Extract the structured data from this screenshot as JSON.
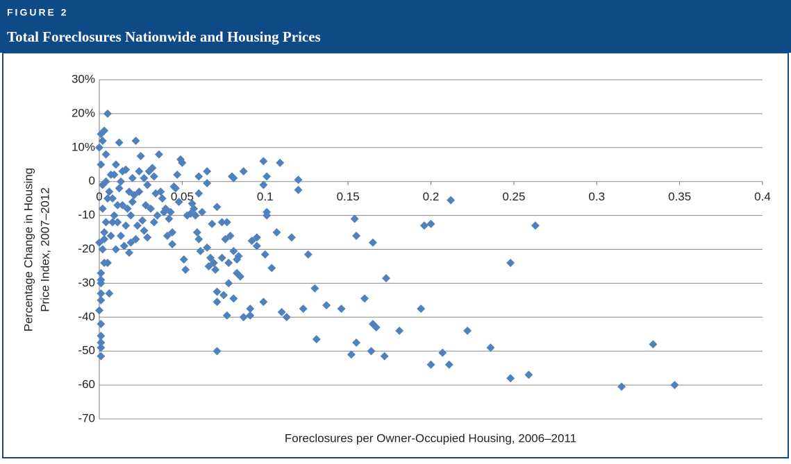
{
  "figure_label": "FIGURE 2",
  "chart_data": {
    "type": "scatter",
    "title": "Total Foreclosures Nationwide and Housing Prices",
    "x_label": "Foreclosures per Owner-Occupied Housing, 2006–2011",
    "y_label": [
      "Percentage Change in Housing",
      "Price Index, 2007–2012"
    ],
    "xlim": [
      0,
      0.4
    ],
    "xticks": [
      0,
      0.05,
      0.1,
      0.15,
      0.2,
      0.25,
      0.3,
      0.35,
      0.4
    ],
    "ylim": [
      -70,
      30
    ],
    "yticks": [
      {
        "value": 30,
        "label": "30%"
      },
      {
        "value": 20,
        "label": "20%"
      },
      {
        "value": 10,
        "label": "10%"
      },
      0,
      -10,
      -20,
      -30,
      -40,
      -50,
      -60,
      -70
    ],
    "grid": true,
    "series": [
      {
        "color": "#4f81bd",
        "x": [
          0.347,
          0.315,
          0.334,
          0.263,
          0.259,
          0.248,
          0.248,
          0.236,
          0.222,
          0.212,
          0.211,
          0.207,
          0.2,
          0.2,
          0.196,
          0.194,
          0.181,
          0.173,
          0.172,
          0.167,
          0.165,
          0.165,
          0.164,
          0.16,
          0.155,
          0.155,
          0.154,
          0.152,
          0.146,
          0.137,
          0.131,
          0.13,
          0.126,
          0.123,
          0.12,
          0.12,
          0.116,
          0.113,
          0.11,
          0.109,
          0.107,
          0.104,
          0.101,
          0.101,
          0.101,
          0.1,
          0.099,
          0.099,
          0.099,
          0.095,
          0.095,
          0.092,
          0.091,
          0.091,
          0.087,
          0.087,
          0.085,
          0.084,
          0.083,
          0.083,
          0.081,
          0.081,
          0.081,
          0.08,
          0.079,
          0.078,
          0.078,
          0.077,
          0.077,
          0.076,
          0.075,
          0.074,
          0.074,
          0.071,
          0.071,
          0.071,
          0.071,
          0.07,
          0.069,
          0.068,
          0.067,
          0.066,
          0.065,
          0.065,
          0.065,
          0.062,
          0.061,
          0.06,
          0.06,
          0.06,
          0.059,
          0.058,
          0.057,
          0.056,
          0.055,
          0.053,
          0.052,
          0.051,
          0.05,
          0.049,
          0.048,
          0.047,
          0.046,
          0.045,
          0.044,
          0.044,
          0.043,
          0.042,
          0.041,
          0.04,
          0.038,
          0.037,
          0.036,
          0.035,
          0.034,
          0.033,
          0.032,
          0.031,
          0.03,
          0.029,
          0.028,
          0.027,
          0.026,
          0.025,
          0.024,
          0.023,
          0.022,
          0.022,
          0.021,
          0.02,
          0.019,
          0.018,
          0.017,
          0.016,
          0.015,
          0.014,
          0.013,
          0.012,
          0.012,
          0.011,
          0.01,
          0.01,
          0.009,
          0.008,
          0.007,
          0.007,
          0.006,
          0.005,
          0.005,
          0.004,
          0.004,
          0.003,
          0.003,
          0.002,
          0.002,
          0.002,
          0.001,
          0.001,
          0.001,
          0.001,
          0.001,
          0.001,
          0.001,
          0.001,
          0.001,
          0.001,
          0.001,
          0.002,
          0.003,
          0.004,
          0.006,
          0.008,
          0.009,
          0.011,
          0.013,
          0.014,
          0.016,
          0.018,
          0.019,
          0.02,
          0.024,
          0.027,
          0.029,
          0.033,
          0.039,
          0,
          0,
          0,
          0.001,
          0.003,
          0.005
        ],
        "values": [
          -60,
          -60.5,
          -48,
          -13,
          -57,
          -58,
          -24,
          -49,
          -44,
          -5.5,
          -54,
          -50.5,
          -12.5,
          -54,
          -13,
          -37.5,
          -44,
          -28.5,
          -51.5,
          -43,
          -42,
          -18,
          -50,
          -34.5,
          -16,
          -47.5,
          -11,
          -51,
          -37.5,
          -36.5,
          -46.5,
          -31.5,
          -21.5,
          -37.5,
          0.5,
          -2.5,
          -16.5,
          -40,
          -38.5,
          5.5,
          -15,
          -25.5,
          -9,
          -10,
          1.5,
          -21.5,
          -1,
          -35.5,
          6,
          -16.5,
          -19,
          -17.5,
          -37.5,
          -39.5,
          3,
          -40,
          -28,
          -22,
          -27,
          -23,
          -34.5,
          -20.5,
          1,
          1.5,
          -16,
          -30,
          -24,
          -39.5,
          -12,
          -17,
          -33.5,
          -22.5,
          -12,
          -7.5,
          -32.5,
          -35.5,
          -50,
          -26,
          -24,
          -12.5,
          -22.5,
          -25,
          -19.5,
          -0.5,
          3,
          -9,
          -20.5,
          -17,
          -3.5,
          1.5,
          -15,
          -10,
          -8,
          -6.5,
          -9.5,
          -10,
          -26,
          -23,
          5.5,
          6.5,
          -6,
          2,
          -2,
          -1.5,
          -15,
          -18.5,
          -9,
          -11,
          -16,
          -8,
          -5,
          -3,
          8,
          -10,
          -3.5,
          -12,
          4,
          -8,
          3,
          -16.5,
          -7,
          -14.5,
          -11.5,
          7.5,
          3,
          -13,
          12,
          -17,
          -4,
          1,
          -10,
          -3,
          -8,
          3.5,
          -19,
          -7,
          -16,
          11.5,
          -2,
          -12,
          5,
          -20,
          -10,
          -5,
          2,
          -16,
          -33,
          20,
          -5,
          8,
          -12,
          15,
          -24,
          -1,
          -20,
          12,
          -29,
          -33,
          -42,
          -45.5,
          -47.5,
          -49,
          -51.5,
          -35,
          14,
          -27,
          5,
          -8,
          -15,
          0,
          -3,
          -12,
          2,
          -7,
          0,
          3,
          -13,
          -21,
          -18,
          -6,
          -3,
          1,
          -1,
          1.5,
          -9,
          -18,
          10,
          -38,
          -30,
          -17,
          -24
        ]
      }
    ]
  }
}
